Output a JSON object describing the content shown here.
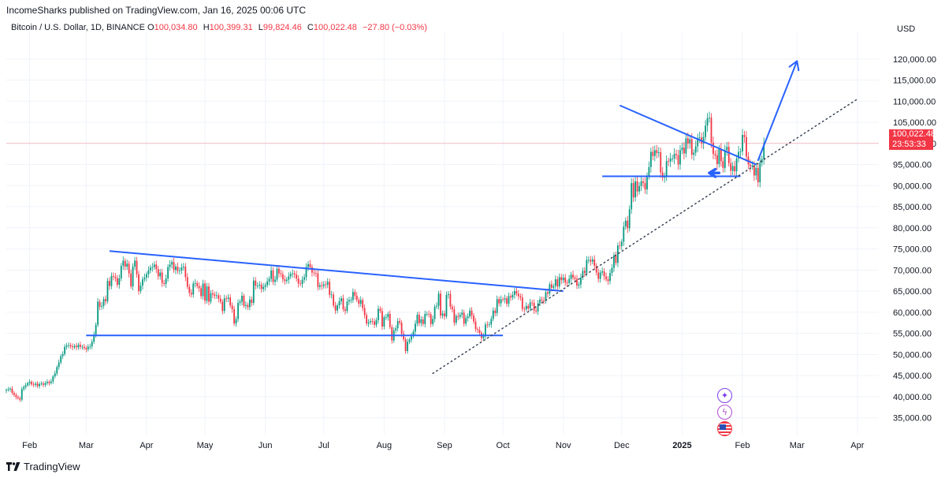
{
  "header": {
    "publisher": "IncomeSharks published on TradingView.com, Jan 16, 2025 00:06 UTC",
    "symbol": "Bitcoin / U.S. Dollar, 1D, BINANCE",
    "ohlc": [
      {
        "label": "O",
        "value": "100,034.80"
      },
      {
        "label": "H",
        "value": "100,399.31"
      },
      {
        "label": "L",
        "value": "99,824.46"
      },
      {
        "label": "C",
        "value": "100,022.48"
      }
    ],
    "change": "−27.80 (−0.03%)"
  },
  "price_axis": {
    "currency": "USD",
    "last_price": "100,022.48",
    "countdown": "23:53:33"
  },
  "footer": {
    "logo_text": "TradingView"
  },
  "colors": {
    "up": "#089981",
    "down": "#f23645",
    "drawing": "#2962ff",
    "trend": "#3d4555",
    "last_price_line": "#f23645"
  },
  "icons": [
    "sparkle-icon",
    "lightning-icon",
    "us-flag-icon"
  ],
  "chart_data": {
    "type": "candlestick",
    "series_name": "Bitcoin / U.S. Dollar, 1D, BINANCE",
    "x_start": "2024-01-20",
    "x_end": "2025-04-12",
    "ylim": [
      31000,
      126500
    ],
    "y_ticks": [
      35000,
      40000,
      45000,
      50000,
      55000,
      60000,
      65000,
      70000,
      75000,
      80000,
      85000,
      90000,
      95000,
      100000,
      105000,
      110000,
      115000,
      120000
    ],
    "y_tick_labels": [
      "35,000.00",
      "40,000.00",
      "45,000.00",
      "50,000.00",
      "55,000.00",
      "60,000.00",
      "65,000.00",
      "70,000.00",
      "75,000.00",
      "80,000.00",
      "85,000.00",
      "90,000.00",
      "95,000.00",
      "100,000.00",
      "105,000.00",
      "110,000.00",
      "115,000.00",
      "120,000.00"
    ],
    "x_ticks": [
      {
        "date": "2024-02-01",
        "label": "Feb"
      },
      {
        "date": "2024-03-01",
        "label": "Mar"
      },
      {
        "date": "2024-04-01",
        "label": "Apr"
      },
      {
        "date": "2024-05-01",
        "label": "May"
      },
      {
        "date": "2024-06-01",
        "label": "Jun"
      },
      {
        "date": "2024-07-01",
        "label": "Jul"
      },
      {
        "date": "2024-08-01",
        "label": "Aug"
      },
      {
        "date": "2024-09-01",
        "label": "Sep"
      },
      {
        "date": "2024-10-01",
        "label": "Oct"
      },
      {
        "date": "2024-11-01",
        "label": "Nov"
      },
      {
        "date": "2024-12-01",
        "label": "Dec"
      },
      {
        "date": "2025-01-01",
        "label": "2025"
      },
      {
        "date": "2025-02-01",
        "label": "Feb"
      },
      {
        "date": "2025-03-01",
        "label": "Mar"
      },
      {
        "date": "2025-04-01",
        "label": "Apr"
      }
    ],
    "candles_start": "2024-01-20",
    "closes": [
      41600,
      41700,
      41900,
      40900,
      40400,
      39900,
      39600,
      39300,
      41800,
      42300,
      42700,
      43200,
      43500,
      42900,
      42800,
      43100,
      42500,
      43000,
      43100,
      42800,
      43200,
      43500,
      43200,
      43600,
      44800,
      45500,
      47000,
      48100,
      49600,
      50100,
      51800,
      52100,
      52200,
      51900,
      51700,
      52000,
      51700,
      52300,
      51800,
      51800,
      51500,
      51200,
      51800,
      51900,
      53000,
      54700,
      57000,
      62500,
      61300,
      61500,
      63100,
      62600,
      67400,
      66200,
      68600,
      68400,
      68100,
      66500,
      68000,
      71000,
      72200,
      70800,
      71500,
      69200,
      66100,
      70800,
      72200,
      69000,
      65000,
      66300,
      67800,
      68200,
      69000,
      69900,
      70600,
      70700,
      71300,
      70200,
      68500,
      69400,
      66900,
      66700,
      68000,
      70700,
      71300,
      71900,
      70000,
      70800,
      69800,
      69900,
      70600,
      70800,
      68300,
      66000,
      64600,
      64200,
      66800,
      66900,
      66200,
      65700,
      63800,
      66800,
      62700,
      66100,
      62500,
      64500,
      64200,
      63900,
      64000,
      63200,
      62500,
      60300,
      63300,
      63200,
      63500,
      61600,
      60700,
      57300,
      58400,
      62200,
      62500,
      63900,
      61500,
      61700,
      61200,
      63000,
      62200,
      67500,
      66300,
      66300,
      66500,
      65500,
      66000,
      66400,
      67300,
      67900,
      69900,
      67200,
      67700,
      70300,
      69200,
      69000,
      67800,
      67400,
      67700,
      68500,
      69100,
      69200,
      68900,
      68000,
      66800,
      66700,
      67700,
      68300,
      70700,
      71400,
      70700,
      69400,
      69300,
      69200,
      66000,
      66400,
      66200,
      66600,
      66500,
      67200,
      64100,
      64200,
      61600,
      60400,
      61600,
      62600,
      63300,
      60700,
      60300,
      62500,
      62900,
      62900,
      64800,
      63900,
      62900,
      62000,
      62900,
      61000,
      59300,
      57300,
      57600,
      57900,
      57800,
      57000,
      58100,
      60800,
      60300,
      56600,
      58800,
      58800,
      59600,
      56500,
      53300,
      55700,
      56200,
      57900,
      57500,
      54900,
      53600,
      50800,
      53000,
      53500,
      54300,
      55400,
      57300,
      59400,
      57400,
      58300,
      57200,
      59600,
      59600,
      59500,
      57200,
      58400,
      61300,
      61500,
      64400,
      59200,
      59700,
      59000,
      64100,
      64300,
      61300,
      60700,
      57500,
      59100,
      58900,
      59400,
      59900,
      57300,
      58600,
      59000,
      60400,
      59200,
      57800,
      56000,
      55800,
      55100,
      53900,
      54300,
      57100,
      57000,
      57100,
      58400,
      60400,
      59800,
      63100,
      62100,
      63100,
      63000,
      63300,
      62000,
      63800,
      63500,
      64100,
      65000,
      64400,
      63800,
      63500,
      60800,
      60700,
      61500,
      60900,
      62300,
      62200,
      60400,
      60200,
      62100,
      63000,
      62800,
      62700,
      64700,
      64400,
      66600,
      65800,
      66200,
      67800,
      66100,
      68300,
      67600,
      68200,
      67000,
      66900,
      67900,
      68900,
      68200,
      67900,
      66300,
      66600,
      68200,
      69800,
      69300,
      72400,
      72400,
      72000,
      72500,
      71000,
      69400,
      67900,
      69400,
      69700,
      68500,
      67800,
      67400,
      69300,
      70500,
      73400,
      71700,
      75800,
      75700,
      76700,
      80300,
      81700,
      79900,
      84400,
      90600,
      87200,
      91000,
      88600,
      89900,
      91000,
      90600,
      89100,
      92300,
      94400,
      98000,
      97000,
      98400,
      97700,
      97900,
      93100,
      91900,
      92200,
      95800,
      95700,
      96400,
      96400,
      97500,
      97200,
      95000,
      98400,
      99000,
      97600,
      101200,
      100000,
      101000,
      97300,
      97800,
      99300,
      101300,
      101400,
      100000,
      101500,
      104200,
      106000,
      106100,
      100200,
      97500,
      97200,
      95100,
      98700,
      95800,
      94200,
      98400,
      99200,
      95300,
      93500,
      94600,
      93400,
      96400,
      98000,
      98100,
      102000,
      101500,
      96900,
      95000,
      94500,
      94700,
      92400,
      94200,
      90800,
      95400,
      96300,
      100000
    ],
    "drawings": [
      {
        "kind": "line",
        "name": "range-support",
        "from": [
          "2024-03-01",
          54500
        ],
        "to": [
          "2024-10-01",
          54500
        ]
      },
      {
        "kind": "line",
        "name": "descending-resistance",
        "from": [
          "2024-03-13",
          74500
        ],
        "to": [
          "2024-11-01",
          65000
        ]
      },
      {
        "kind": "line",
        "name": "flag-resistance",
        "from": [
          "2024-11-30",
          109000
        ],
        "to": [
          "2025-02-08",
          95000
        ]
      },
      {
        "kind": "line",
        "name": "flag-support",
        "from": [
          "2024-11-21",
          92200
        ],
        "to": [
          "2025-01-31",
          92200
        ]
      },
      {
        "kind": "dotted",
        "name": "rising-trendline",
        "from": [
          "2024-08-26",
          45500
        ],
        "to": [
          "2025-04-01",
          110500
        ]
      },
      {
        "kind": "arrow",
        "name": "breakout-projection-arrow",
        "from": [
          "2025-02-09",
          96000
        ],
        "to": [
          "2025-03-01",
          119500
        ]
      },
      {
        "kind": "arrow",
        "name": "support-pointer-arrow",
        "from": [
          "2025-01-20",
          93000
        ],
        "to": [
          "2025-01-15",
          93000
        ]
      }
    ]
  }
}
